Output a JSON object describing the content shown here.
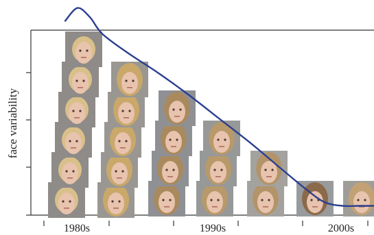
{
  "chart_data": {
    "type": "line",
    "title": "",
    "ylabel": "face variability",
    "xlabel": "",
    "x_tick_labels": [
      "1980s",
      "1990s",
      "2000s"
    ],
    "grid": false,
    "legend": "none",
    "curve_color": "#2b3f8f",
    "series": [
      {
        "x": [
          0.0,
          0.04,
          0.08,
          0.12,
          0.2,
          0.3,
          0.4,
          0.5,
          0.6,
          0.7,
          0.78,
          0.84,
          0.9,
          0.95,
          1.0
        ],
        "y": [
          1.05,
          1.12,
          1.07,
          0.98,
          0.88,
          0.77,
          0.65,
          0.52,
          0.39,
          0.25,
          0.14,
          0.07,
          0.05,
          0.05,
          0.05
        ]
      }
    ],
    "photo_columns": [
      {
        "group": "1980s",
        "count": 6
      },
      {
        "group": "1980s",
        "count": 5
      },
      {
        "group": "1990s",
        "count": 4
      },
      {
        "group": "1990s",
        "count": 3
      },
      {
        "group": "1990s",
        "count": 2
      },
      {
        "group": "2000s",
        "count": 1
      },
      {
        "group": "2000s",
        "count": 1
      }
    ]
  }
}
